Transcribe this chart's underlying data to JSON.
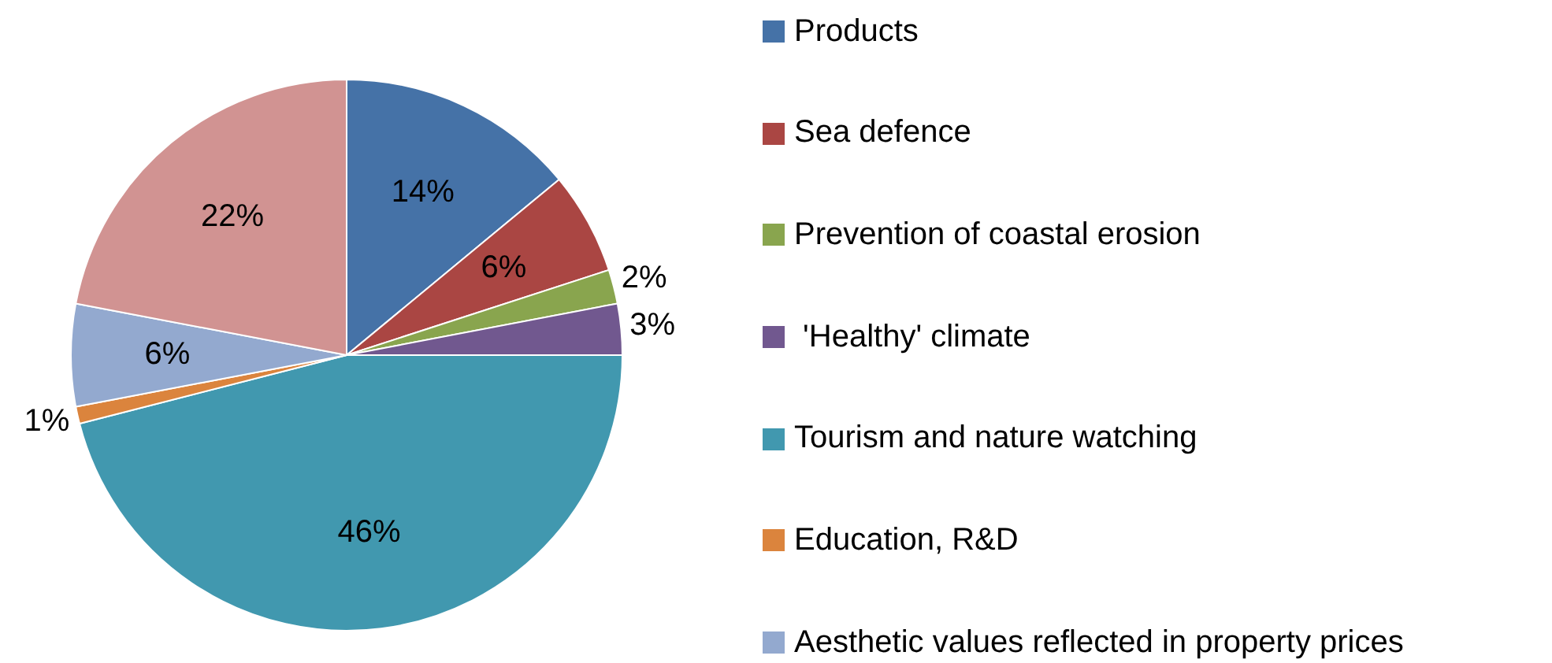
{
  "chart_data": {
    "type": "pie",
    "categories": [
      "Products",
      "Sea defence",
      "Prevention of coastal erosion",
      " 'Healthy' climate",
      "Tourism and nature watching",
      "Education, R&D",
      "Aesthetic values reflected in property prices",
      null
    ],
    "values": [
      14,
      6,
      2,
      3,
      46,
      1,
      6,
      22
    ],
    "value_labels": [
      "14%",
      "6%",
      "2%",
      "3%",
      "46%",
      "1%",
      "6%",
      "22%"
    ],
    "colors": [
      "#4572a7",
      "#aa4643",
      "#89a54e",
      "#71588f",
      "#4198af",
      "#db843d",
      "#93a9cf",
      "#d19392"
    ],
    "legend": "right"
  }
}
